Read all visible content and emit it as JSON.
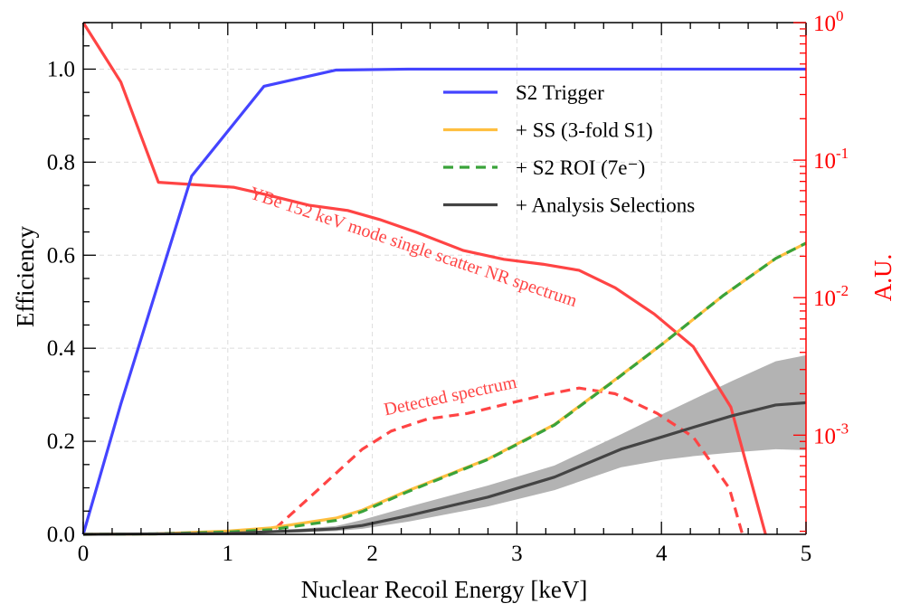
{
  "chart_data": {
    "type": "line",
    "xlabel": "Nuclear Recoil Energy [keV]",
    "ylabel": "Efficiency",
    "y2label": "A.U.",
    "xlim": [
      0,
      5
    ],
    "ylim": [
      0,
      1.1
    ],
    "y2lim": [
      0.00019,
      1
    ],
    "y2scale": "log",
    "grid": true,
    "legend_position": "top-right",
    "x_ticks": [
      "0",
      "1",
      "2",
      "3",
      "4",
      "5"
    ],
    "y_ticks": [
      "0.0",
      "0.2",
      "0.4",
      "0.6",
      "0.8",
      "1.0"
    ],
    "y2_ticks": [
      {
        "base": "10",
        "exp": "0"
      },
      {
        "base": "10",
        "exp": "-1"
      },
      {
        "base": "10",
        "exp": "-2"
      },
      {
        "base": "10",
        "exp": "-3"
      }
    ],
    "colors": {
      "trigger": "#4444ff",
      "ss": "#ffbf40",
      "roi": "#3aa33a",
      "analysis": "#444444",
      "band": "#b3b3b3",
      "spectrum": "#ff4444",
      "axis2": "#ff0000"
    },
    "series": [
      {
        "name": "S2 Trigger",
        "axis": "left",
        "style": "solid",
        "color": "#4444ff",
        "x": [
          0,
          0.26,
          0.75,
          1.25,
          1.75,
          2.25,
          3,
          4,
          5
        ],
        "y": [
          0,
          0.28,
          0.77,
          0.963,
          0.998,
          1.0,
          1.0,
          1.0,
          1.0
        ]
      },
      {
        "name": "+ SS (3-fold S1)",
        "axis": "left",
        "style": "solid",
        "color": "#ffbf40",
        "x": [
          0,
          0.5,
          1.0,
          1.3,
          1.75,
          1.93,
          2.24,
          2.8,
          3.26,
          3.66,
          4.01,
          4.43,
          4.79,
          5.0
        ],
        "y": [
          0,
          0.001,
          0.007,
          0.014,
          0.035,
          0.052,
          0.093,
          0.162,
          0.236,
          0.328,
          0.41,
          0.514,
          0.593,
          0.626
        ]
      },
      {
        "name": "+ S2 ROI (7e⁻)",
        "axis": "left",
        "style": "dashed",
        "color": "#3aa33a",
        "x": [
          0,
          0.5,
          1.0,
          1.3,
          1.75,
          1.93,
          2.24,
          2.8,
          3.26,
          3.66,
          4.01,
          4.43,
          4.79,
          5.0
        ],
        "y": [
          0,
          0.001,
          0.005,
          0.01,
          0.03,
          0.049,
          0.091,
          0.161,
          0.235,
          0.327,
          0.41,
          0.514,
          0.593,
          0.626
        ]
      },
      {
        "name": "+ Analysis Selections",
        "axis": "left",
        "style": "solid",
        "color": "#444444",
        "x": [
          0,
          1.0,
          1.5,
          1.75,
          1.93,
          2.26,
          2.8,
          3.26,
          3.72,
          4.01,
          4.22,
          4.49,
          4.79,
          5.0
        ],
        "y": [
          0,
          0.002,
          0.008,
          0.012,
          0.019,
          0.041,
          0.08,
          0.123,
          0.183,
          0.21,
          0.23,
          0.255,
          0.278,
          0.283
        ],
        "band_upper": [
          0,
          0.003,
          0.012,
          0.018,
          0.031,
          0.06,
          0.105,
          0.148,
          0.215,
          0.259,
          0.29,
          0.33,
          0.372,
          0.385
        ],
        "band_lower": [
          0,
          0.001,
          0.004,
          0.007,
          0.012,
          0.028,
          0.06,
          0.095,
          0.144,
          0.16,
          0.168,
          0.176,
          0.183,
          0.181
        ]
      },
      {
        "axis": "right",
        "style": "solid",
        "color": "#ff4444",
        "x": [
          0,
          0.26,
          0.52,
          1.04,
          1.27,
          1.56,
          1.83,
          2.05,
          2.3,
          2.63,
          2.91,
          3.18,
          3.43,
          3.68,
          3.95,
          4.22,
          4.48,
          4.72
        ],
        "y": [
          1.0,
          0.37,
          0.069,
          0.0635,
          0.056,
          0.047,
          0.043,
          0.037,
          0.03,
          0.022,
          0.019,
          0.0175,
          0.0158,
          0.0118,
          0.0076,
          0.0044,
          0.0016,
          0.00019
        ]
      },
      {
        "axis": "right",
        "style": "dashed",
        "color": "#ff4444",
        "x": [
          1.33,
          1.6,
          1.93,
          2.13,
          2.38,
          2.66,
          3.18,
          3.43,
          3.68,
          3.97,
          4.22,
          4.47,
          4.56
        ],
        "y": [
          0.00021,
          0.00038,
          0.00079,
          0.00107,
          0.00131,
          0.00144,
          0.00195,
          0.0022,
          0.002,
          0.00144,
          0.00097,
          0.00041,
          0.00019
        ]
      }
    ],
    "annotations": [
      {
        "text": "YBe 152 keV mode single scatter NR spectrum",
        "color": "#ff4444"
      },
      {
        "text": "Detected spectrum",
        "color": "#ff4444"
      }
    ]
  }
}
